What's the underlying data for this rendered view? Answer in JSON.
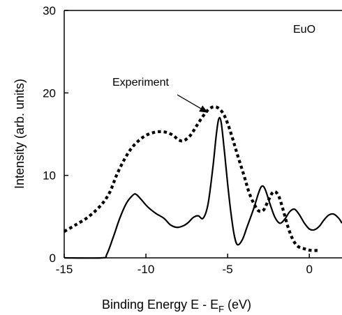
{
  "chart_data": {
    "type": "line",
    "title": "",
    "xlabel_main": "Binding Energy E - E",
    "xlabel_sub": "F",
    "xlabel_unit": " (eV)",
    "ylabel": "Intensity (arb. units)",
    "xlim": [
      -15,
      2
    ],
    "ylim": [
      0,
      30
    ],
    "xticks": [
      -15,
      -10,
      -5,
      0
    ],
    "yticks": [
      0,
      10,
      20,
      30
    ],
    "xtick_labels": [
      "-15",
      "-10",
      "-5",
      "0"
    ],
    "ytick_labels": [
      "0",
      "10",
      "20",
      "30"
    ],
    "sample_label": "EuO",
    "annotation": {
      "text": "Experiment",
      "arrow_to": {
        "x": -6.2,
        "y": 17.6
      }
    },
    "grid": false,
    "series": [
      {
        "name": "Experiment",
        "style": "dotted",
        "color": "#000000",
        "points": [
          [
            -15,
            3.2
          ],
          [
            -14.3,
            4.0
          ],
          [
            -13.5,
            5.0
          ],
          [
            -12.7,
            6.5
          ],
          [
            -12.2,
            8.0
          ],
          [
            -11.8,
            10.0
          ],
          [
            -11.3,
            12.0
          ],
          [
            -10.8,
            13.5
          ],
          [
            -10.2,
            14.6
          ],
          [
            -9.7,
            15.1
          ],
          [
            -9.2,
            15.3
          ],
          [
            -8.7,
            15.2
          ],
          [
            -8.3,
            14.8
          ],
          [
            -8.0,
            14.3
          ],
          [
            -7.7,
            14.2
          ],
          [
            -7.3,
            14.8
          ],
          [
            -6.9,
            16.0
          ],
          [
            -6.5,
            17.2
          ],
          [
            -6.1,
            18.1
          ],
          [
            -5.7,
            18.3
          ],
          [
            -5.3,
            17.6
          ],
          [
            -5.0,
            16.3
          ],
          [
            -4.7,
            14.5
          ],
          [
            -4.4,
            12.5
          ],
          [
            -4.0,
            10.0
          ],
          [
            -3.7,
            8.0
          ],
          [
            -3.4,
            6.6
          ],
          [
            -3.1,
            5.7
          ],
          [
            -2.8,
            5.8
          ],
          [
            -2.5,
            7.0
          ],
          [
            -2.2,
            8.0
          ],
          [
            -1.9,
            7.6
          ],
          [
            -1.6,
            5.8
          ],
          [
            -1.3,
            3.7
          ],
          [
            -1.0,
            2.2
          ],
          [
            -0.7,
            1.4
          ],
          [
            -0.3,
            1.1
          ],
          [
            0.1,
            0.9
          ],
          [
            0.5,
            0.9
          ]
        ]
      },
      {
        "name": "",
        "style": "solid",
        "color": "#000000",
        "points": [
          [
            -15,
            0
          ],
          [
            -12.7,
            0
          ],
          [
            -12.4,
            0.4
          ],
          [
            -12.0,
            2.5
          ],
          [
            -11.6,
            4.8
          ],
          [
            -11.2,
            6.6
          ],
          [
            -10.8,
            7.6
          ],
          [
            -10.6,
            7.7
          ],
          [
            -10.3,
            7.1
          ],
          [
            -9.9,
            6.2
          ],
          [
            -9.4,
            5.4
          ],
          [
            -8.9,
            4.8
          ],
          [
            -8.5,
            4.0
          ],
          [
            -8.1,
            3.7
          ],
          [
            -7.7,
            3.9
          ],
          [
            -7.4,
            4.3
          ],
          [
            -7.1,
            4.9
          ],
          [
            -6.8,
            5.1
          ],
          [
            -6.5,
            4.8
          ],
          [
            -6.2,
            6.5
          ],
          [
            -5.9,
            11.0
          ],
          [
            -5.7,
            14.8
          ],
          [
            -5.55,
            16.8
          ],
          [
            -5.4,
            16.5
          ],
          [
            -5.2,
            13.0
          ],
          [
            -5.0,
            9.0
          ],
          [
            -4.8,
            5.5
          ],
          [
            -4.6,
            2.8
          ],
          [
            -4.4,
            1.6
          ],
          [
            -4.1,
            2.2
          ],
          [
            -3.8,
            3.8
          ],
          [
            -3.4,
            6.0
          ],
          [
            -3.1,
            7.9
          ],
          [
            -2.9,
            8.7
          ],
          [
            -2.7,
            8.3
          ],
          [
            -2.4,
            6.5
          ],
          [
            -2.1,
            4.9
          ],
          [
            -1.8,
            4.2
          ],
          [
            -1.5,
            4.7
          ],
          [
            -1.2,
            5.6
          ],
          [
            -0.9,
            5.9
          ],
          [
            -0.6,
            5.2
          ],
          [
            -0.3,
            4.2
          ],
          [
            0.0,
            3.5
          ],
          [
            0.3,
            3.4
          ],
          [
            0.6,
            3.8
          ],
          [
            0.9,
            4.6
          ],
          [
            1.2,
            5.2
          ],
          [
            1.5,
            5.3
          ],
          [
            1.8,
            4.8
          ],
          [
            2.0,
            4.2
          ]
        ]
      }
    ]
  }
}
